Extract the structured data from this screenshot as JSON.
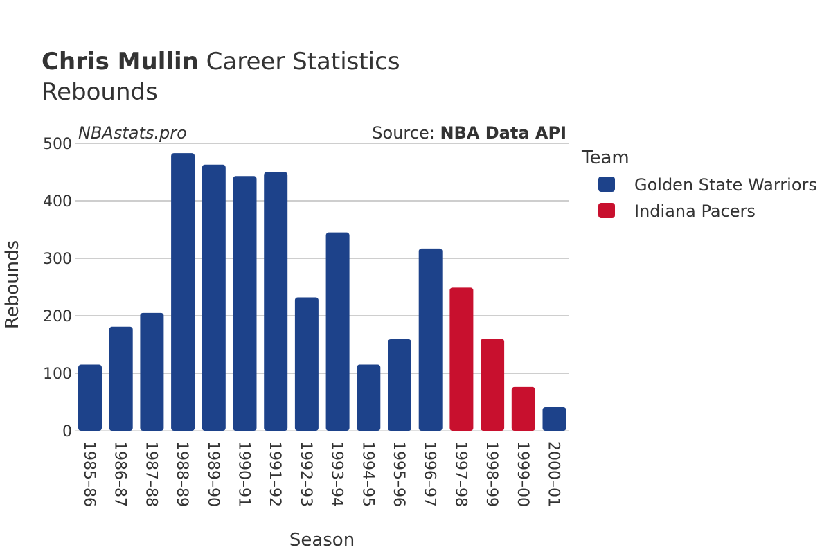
{
  "chart_data": {
    "type": "bar",
    "title_bold": "Chris Mullin",
    "title_rest": " Career Statistics",
    "subtitle": "Rebounds",
    "watermark": "NBAstats.pro",
    "source_label": "Source: ",
    "source_value": "NBA Data API",
    "xlabel": "Season",
    "ylabel": "Rebounds",
    "ylim": [
      0,
      500
    ],
    "yticks": [
      0,
      100,
      200,
      300,
      400,
      500
    ],
    "grid": true,
    "legend_title": "Team",
    "legend_position": "right",
    "teams": [
      {
        "name": "Golden State Warriors",
        "color": "#1d428a"
      },
      {
        "name": "Indiana Pacers",
        "color": "#c8102e"
      }
    ],
    "categories": [
      "1985–86",
      "1986–87",
      "1987–88",
      "1988–89",
      "1989–90",
      "1990–91",
      "1991–92",
      "1992–93",
      "1993–94",
      "1994–95",
      "1995–96",
      "1996–97",
      "1997–98",
      "1998–99",
      "1999–00",
      "2000–01"
    ],
    "values": [
      115,
      181,
      205,
      483,
      463,
      443,
      450,
      232,
      345,
      115,
      159,
      317,
      249,
      160,
      76,
      41
    ],
    "team_index": [
      0,
      0,
      0,
      0,
      0,
      0,
      0,
      0,
      0,
      0,
      0,
      0,
      1,
      1,
      1,
      0
    ]
  }
}
